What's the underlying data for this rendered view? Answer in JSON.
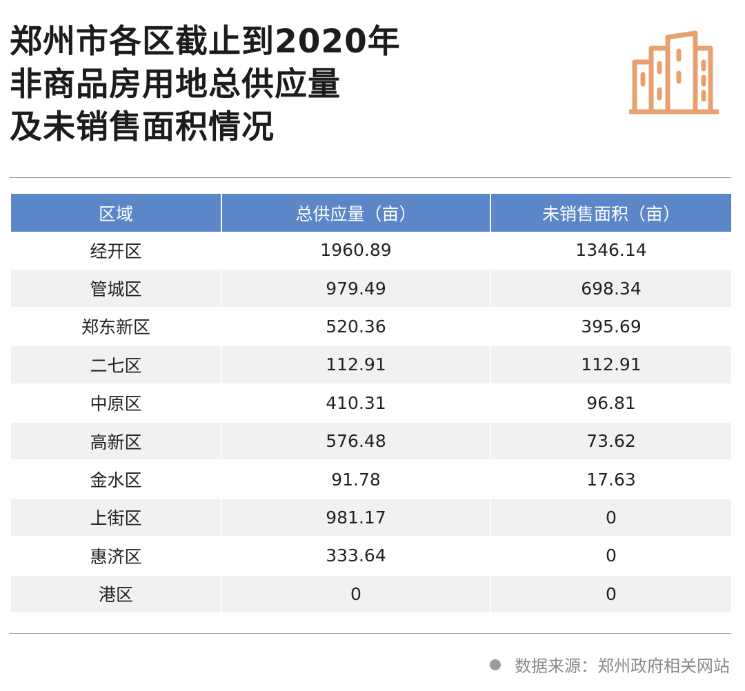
{
  "title": {
    "lines": [
      "郑州市各区截止到2020年",
      "非商品房用地总供应量",
      "及未销售面积情况"
    ]
  },
  "icons": {
    "header": "building-icon",
    "footer": "bullet-dot-icon"
  },
  "colors": {
    "header_bg": "#5b86c7",
    "icon": "#e8a070",
    "stripe": "#f1f1f1"
  },
  "table": {
    "headers": [
      "区域",
      "总供应量（亩）",
      "未销售面积（亩）"
    ],
    "rows": [
      {
        "district": "经开区",
        "total": "1960.89",
        "unsold": "1346.14"
      },
      {
        "district": "管城区",
        "total": "979.49",
        "unsold": "698.34"
      },
      {
        "district": "郑东新区",
        "total": "520.36",
        "unsold": "395.69"
      },
      {
        "district": "二七区",
        "total": "112.91",
        "unsold": "112.91"
      },
      {
        "district": "中原区",
        "total": "410.31",
        "unsold": "96.81"
      },
      {
        "district": "高新区",
        "total": "576.48",
        "unsold": "73.62"
      },
      {
        "district": "金水区",
        "total": "91.78",
        "unsold": "17.63"
      },
      {
        "district": "上街区",
        "total": "981.17",
        "unsold": "0"
      },
      {
        "district": "惠济区",
        "total": "333.64",
        "unsold": "0"
      },
      {
        "district": "港区",
        "total": "0",
        "unsold": "0"
      }
    ]
  },
  "footer": {
    "source": "数据来源：郑州政府相关网站"
  }
}
